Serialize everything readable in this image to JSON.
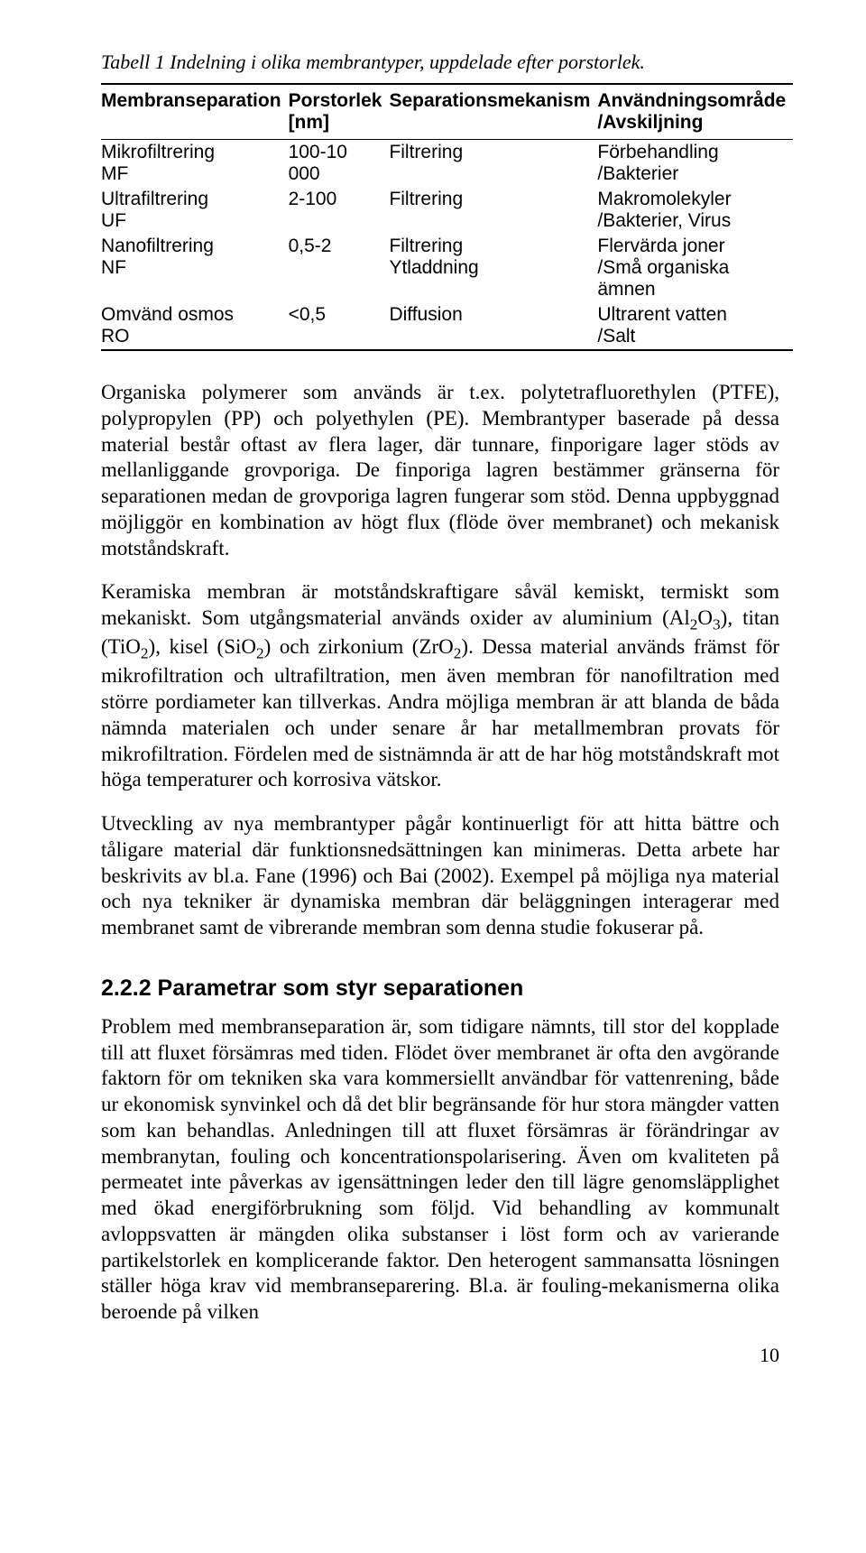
{
  "table": {
    "caption": "Tabell 1 Indelning i olika membrantyper, uppdelade efter porstorlek.",
    "headers": {
      "c0": "Membranseparation",
      "c1_l1": "Porstorlek",
      "c1_l2": "[nm]",
      "c2": "Separationsmekanism",
      "c3_l1": "Användningsområde",
      "c3_l2": "/Avskiljning"
    },
    "rows": [
      {
        "a1": "Mikrofiltrering",
        "a2": "MF",
        "b": "100-10 000",
        "c": "Filtrering",
        "d1": "Förbehandling",
        "d2": "/Bakterier"
      },
      {
        "a1": "Ultrafiltrering",
        "a2": "UF",
        "b": "2-100",
        "c": "Filtrering",
        "d1": "Makromolekyler",
        "d2": "/Bakterier, Virus"
      },
      {
        "a1": "Nanofiltrering",
        "a2": "NF",
        "b": "0,5-2",
        "c1": "Filtrering",
        "c2": "Ytladdning",
        "d1": "Flervärda joner",
        "d2": "/Små organiska ämnen"
      },
      {
        "a1": "Omvänd osmos",
        "a2": "RO",
        "b": "<0,5",
        "c": "Diffusion",
        "d1": "Ultrarent vatten",
        "d2": "/Salt"
      }
    ]
  },
  "paragraphs": {
    "p1": "Organiska polymerer som används är t.ex. polytetrafluorethylen (PTFE), polypropylen (PP) och polyethylen (PE). Membrantyper baserade på dessa material består oftast av flera lager, där tunnare, finporigare lager stöds av mellanliggande grovporiga. De finporiga lagren bestämmer gränserna för separationen medan de grovporiga lagren fungerar som stöd. Denna uppbyggnad möjliggör en kombination av högt flux (flöde över membranet) och mekanisk motståndskraft.",
    "p2_pre": "Keramiska membran är motståndskraftigare såväl kemiskt, termiskt som mekaniskt. Som utgångsmaterial används oxider av aluminium (Al",
    "p2_al": "2",
    "p2_o": "O",
    "p2_al_o3": "3",
    "p2_mid1": "), titan (TiO",
    "p2_ti": "2",
    "p2_mid2": "), kisel (SiO",
    "p2_si": "2",
    "p2_mid3": ") och zirkonium (ZrO",
    "p2_zr": "2",
    "p2_post": "). Dessa material används främst för mikrofiltration och ultrafiltration, men även membran för nanofiltration med större pordiameter kan tillverkas. Andra möjliga membran är att blanda de båda nämnda materialen och under senare år har metallmembran provats för mikrofiltration. Fördelen med de sistnämnda är att de har hög motståndskraft mot höga temperaturer och korrosiva vätskor.",
    "p3": "Utveckling av nya membrantyper pågår kontinuerligt för att hitta bättre och tåligare material där funktionsnedsättningen kan minimeras. Detta arbete har beskrivits av bl.a. Fane (1996) och Bai (2002). Exempel på möjliga nya material och nya tekniker är dynamiska membran där beläggningen interagerar med membranet samt de vibrerande membran som denna studie fokuserar på.",
    "p4": "Problem med membranseparation är, som tidigare nämnts, till stor del kopplade till att fluxet försämras med tiden. Flödet över membranet är ofta den avgörande faktorn för om tekniken ska vara kommersiellt användbar för vattenrening, både ur ekonomisk synvinkel och då det blir begränsande för hur stora mängder vatten som kan behandlas. Anledningen till att fluxet försämras är förändringar av membranytan, fouling och koncentrationspolarisering. Även om kvaliteten på permeatet inte påverkas av igensättningen leder den till lägre genomsläpplighet med ökad energiförbrukning som följd. Vid behandling av kommunalt avloppsvatten är mängden olika substanser i löst form och av varierande partikelstorlek en komplicerande faktor. Den heterogent sammansatta lösningen ställer höga krav vid membranseparering. Bl.a. är fouling-mekanismerna olika beroende på vilken"
  },
  "section_heading": "2.2.2 Parametrar som styr separationen",
  "page_number": "10"
}
